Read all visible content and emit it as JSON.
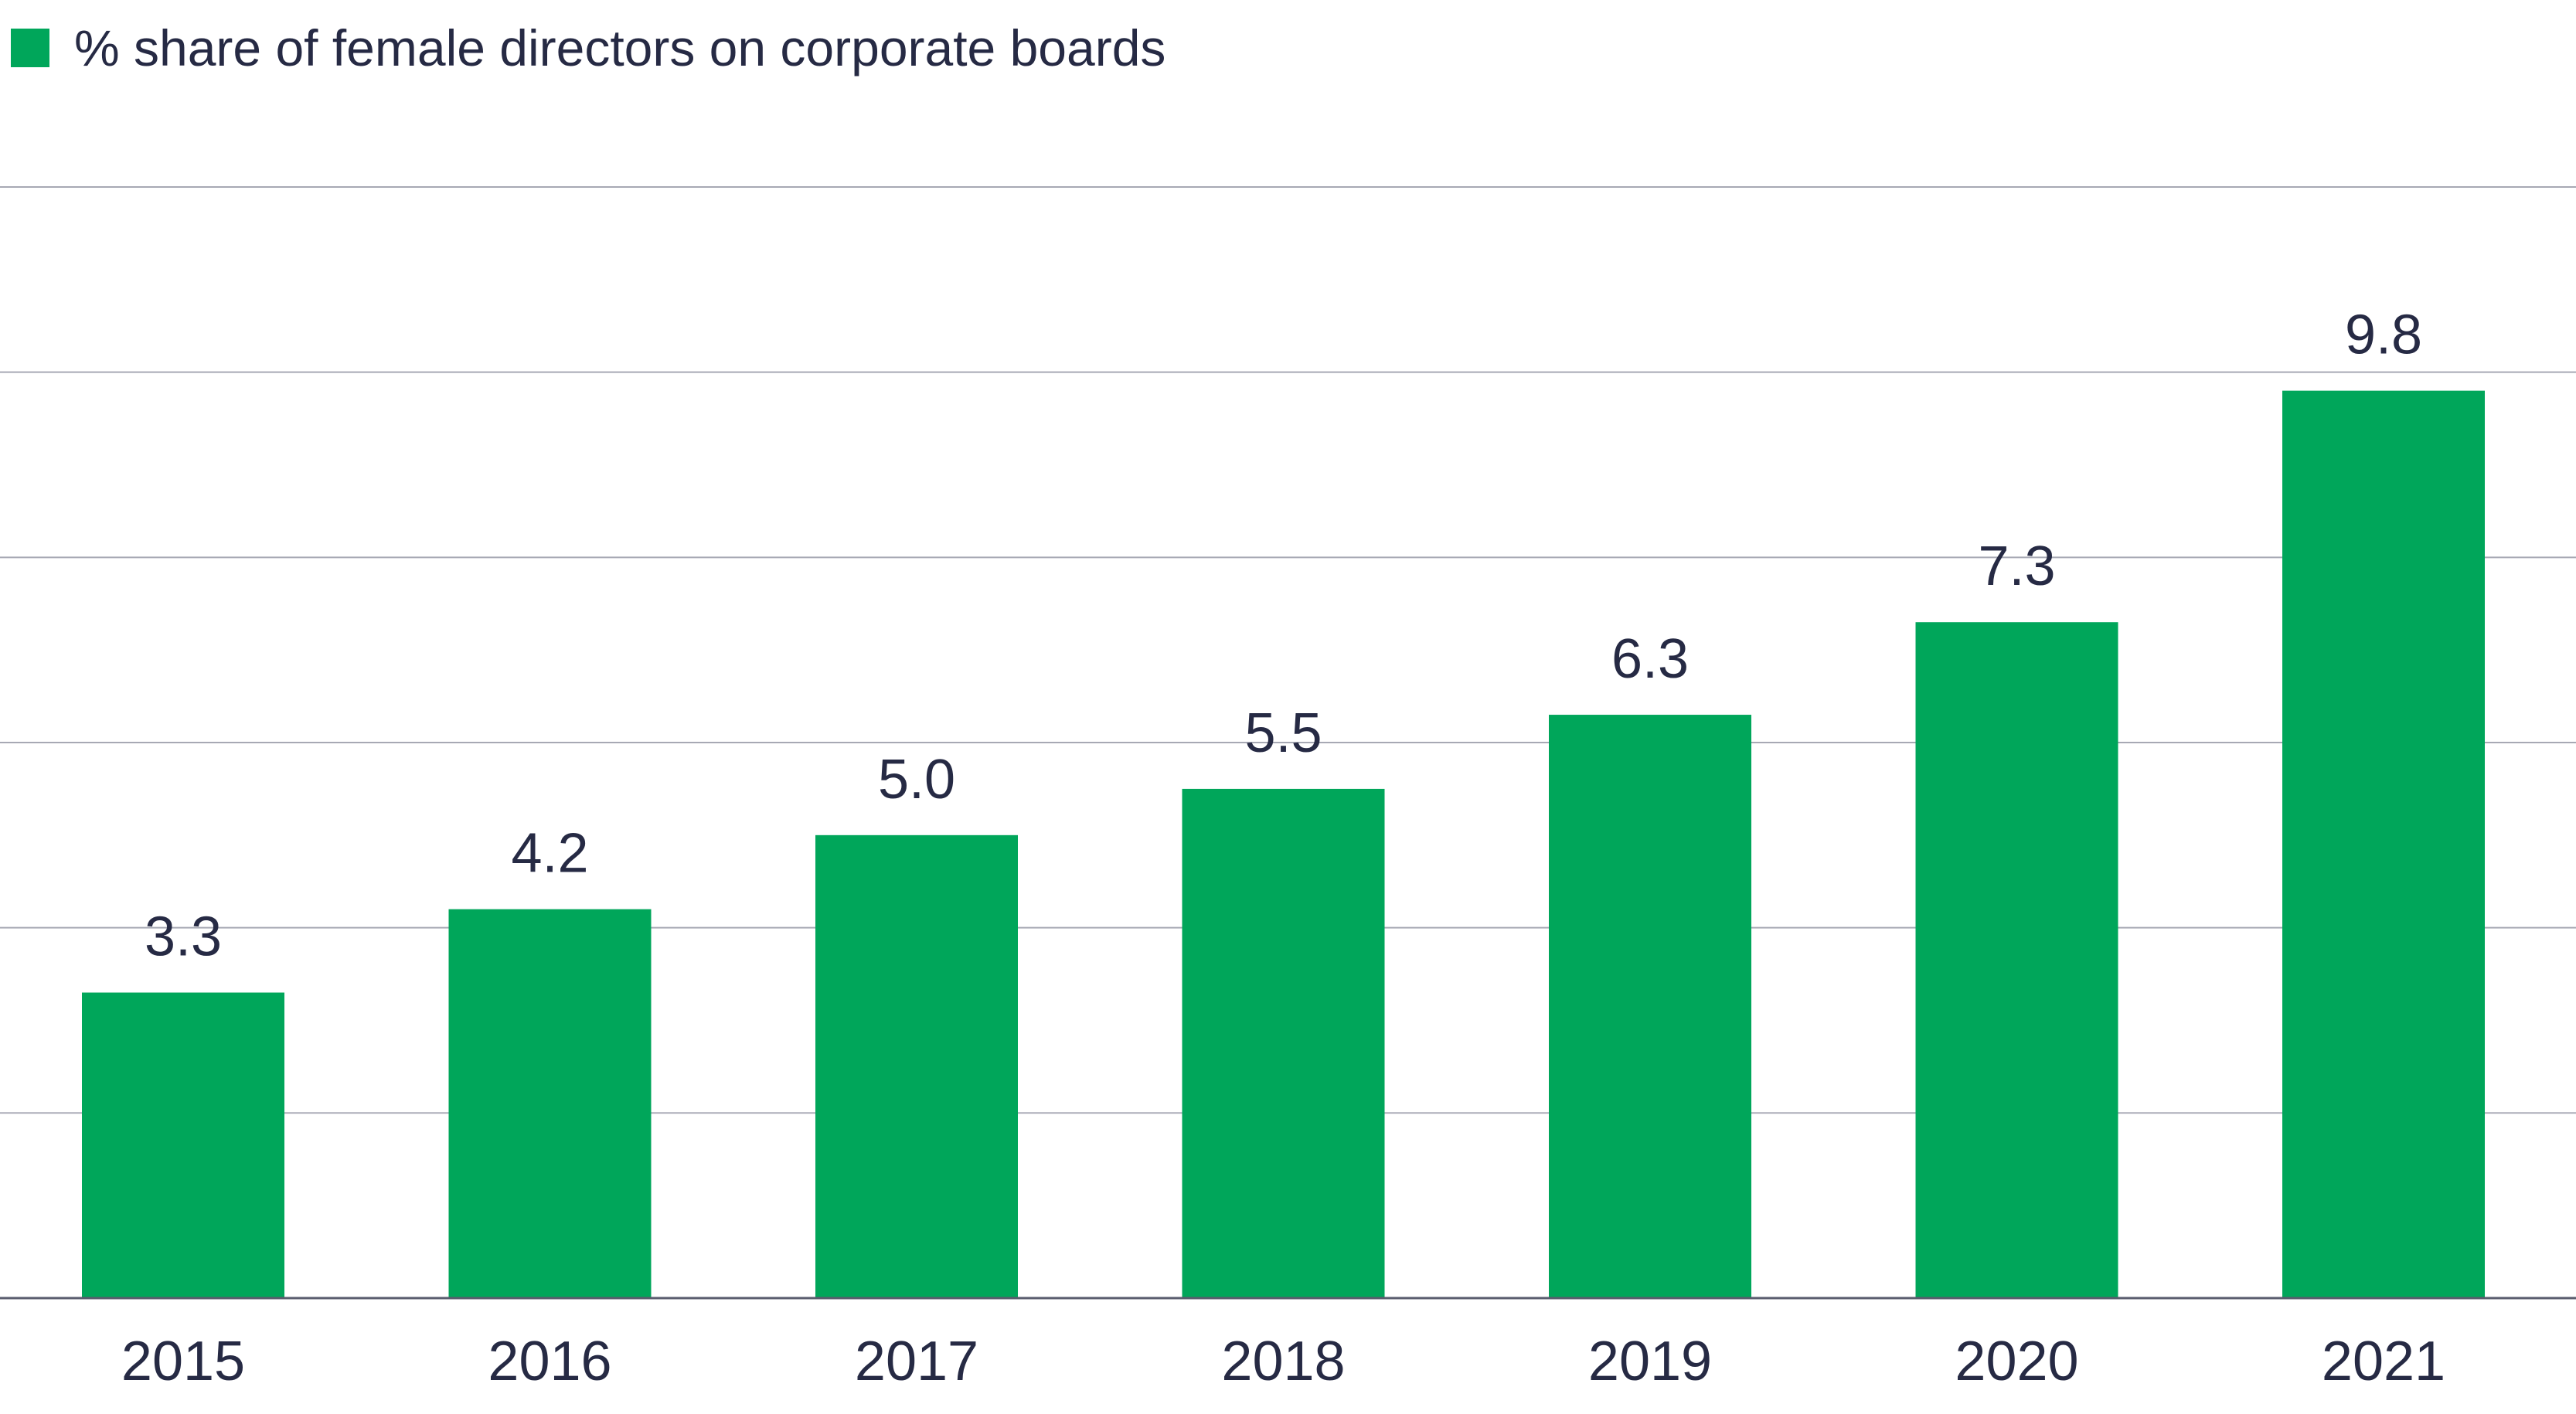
{
  "chart_data": {
    "type": "bar",
    "title": "",
    "xlabel": "",
    "ylabel": "",
    "categories": [
      "2015",
      "2016",
      "2017",
      "2018",
      "2019",
      "2020",
      "2021"
    ],
    "series": [
      {
        "name": "% share of female directors on corporate boards",
        "values": [
          3.3,
          4.2,
          5.0,
          5.5,
          6.3,
          7.3,
          9.8
        ],
        "labels": [
          "3.3",
          "4.2",
          "5.0",
          "5.5",
          "6.3",
          "7.3",
          "9.8"
        ],
        "color": "#00a65a"
      }
    ],
    "ylim": [
      0,
      12
    ],
    "grid": true,
    "legend_position": "top-left"
  }
}
